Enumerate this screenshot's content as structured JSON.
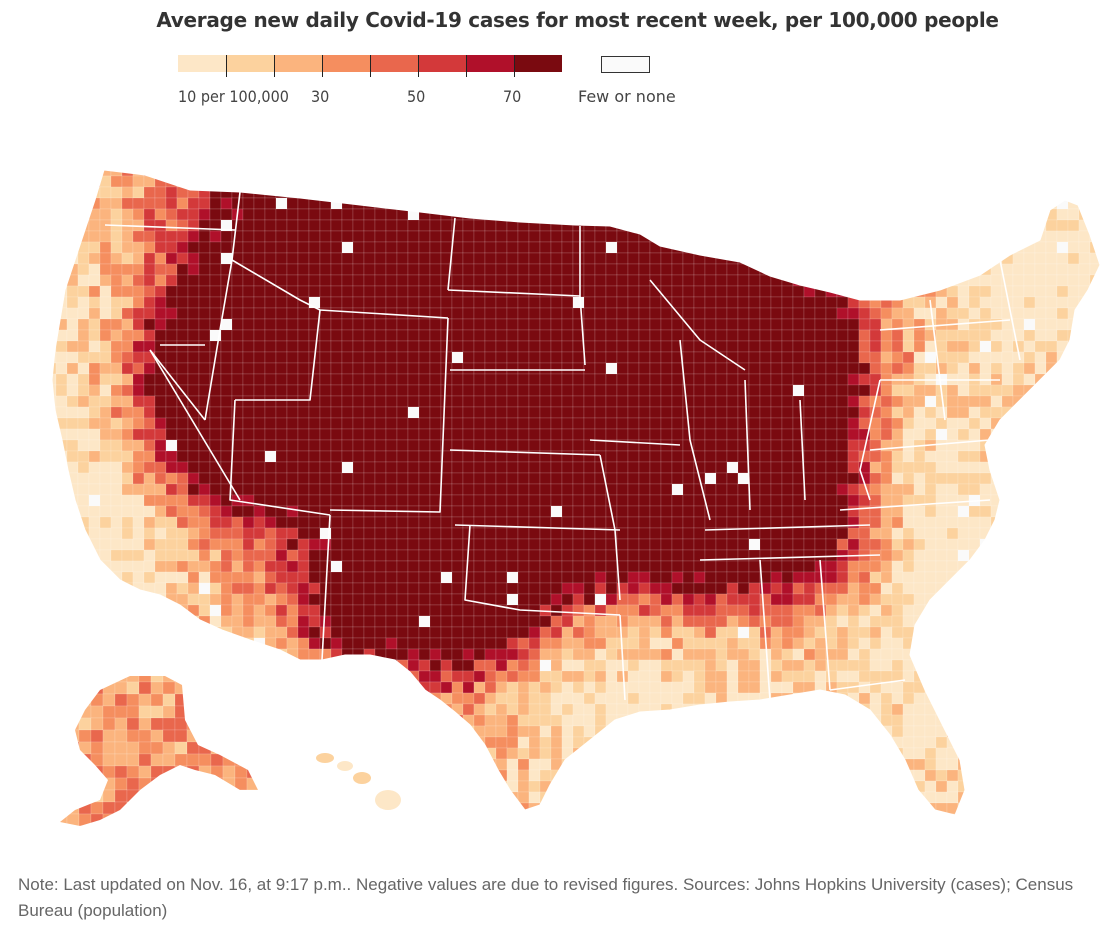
{
  "title": "Average new daily Covid-19 cases for most recent week, per 100,000 people",
  "legend": {
    "bins": [
      "#fde7c7",
      "#fcd29e",
      "#fbb47e",
      "#f58e5f",
      "#e9674d",
      "#d3393a",
      "#b0102a",
      "#7a0a10"
    ],
    "labels": [
      "10 per 100,000",
      "30",
      "50",
      "70"
    ],
    "no_data_label": "Few or none",
    "no_data_color": "#fafafa"
  },
  "map": {
    "region": "United States (counties)",
    "state_border_color": "#ffffff"
  },
  "note": "Note: Last updated on Nov. 16, at 9:17 p.m.. Negative values are due to revised figures. Sources: Johns Hopkins University (cases); Census Bureau (population)"
}
